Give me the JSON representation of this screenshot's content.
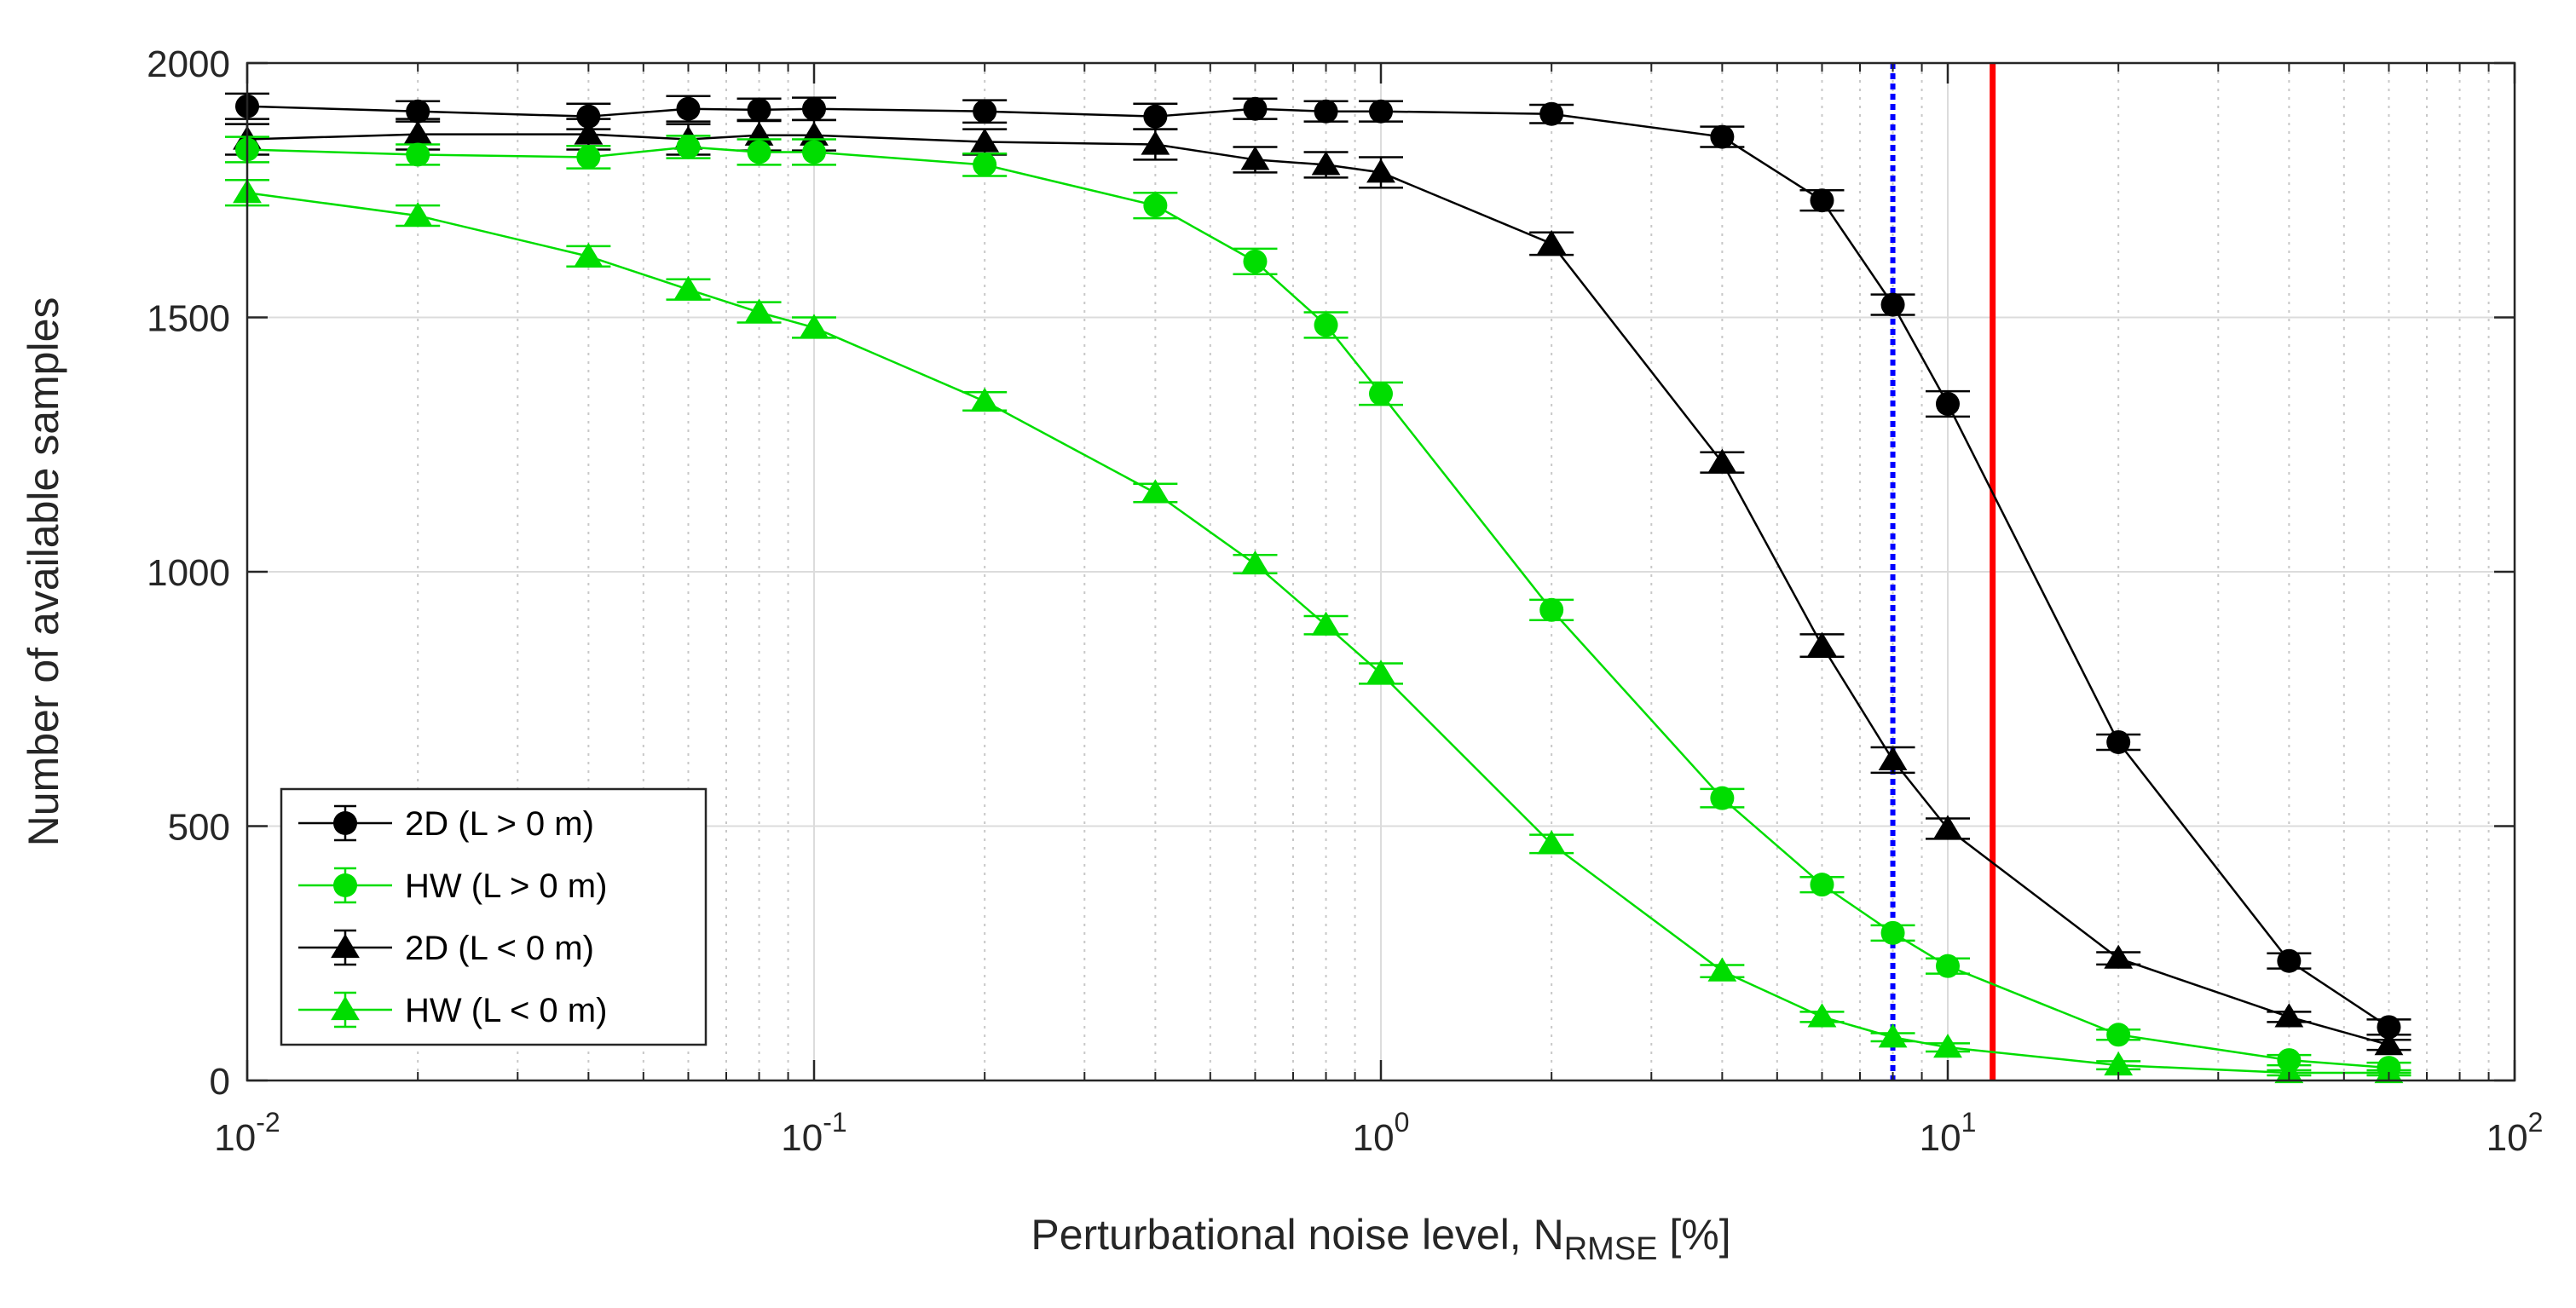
{
  "chart_data": {
    "type": "line",
    "x_scale": "log",
    "xlim": [
      0.01,
      100
    ],
    "ylim": [
      0,
      2000
    ],
    "xlabel": {
      "main": "Perturbational noise level, N",
      "sub": "RMSE",
      "suffix": " [%]"
    },
    "ylabel": "Number of available samples",
    "y_ticks": [
      0,
      500,
      1000,
      1500,
      2000
    ],
    "x_ticks": [
      {
        "value": 0.01,
        "base": "10",
        "exp": "-2"
      },
      {
        "value": 0.1,
        "base": "10",
        "exp": "-1"
      },
      {
        "value": 1,
        "base": "10",
        "exp": "0"
      },
      {
        "value": 10,
        "base": "10",
        "exp": "1"
      },
      {
        "value": 100,
        "base": "10",
        "exp": "2"
      }
    ],
    "grid": true,
    "legend_position": "bottom-left",
    "x": [
      0.01,
      0.02,
      0.04,
      0.06,
      0.08,
      0.1,
      0.2,
      0.4,
      0.6,
      0.8,
      1,
      2,
      4,
      6,
      8,
      10,
      20,
      40,
      60
    ],
    "series": [
      {
        "name": "2D (L > 0 m)",
        "color": "#000000",
        "marker": "circle",
        "values": [
          1915,
          1905,
          1895,
          1910,
          1908,
          1910,
          1905,
          1895,
          1910,
          1905,
          1905,
          1900,
          1855,
          1730,
          1525,
          1330,
          665,
          235,
          105
        ],
        "errors": [
          25,
          20,
          25,
          25,
          22,
          22,
          22,
          25,
          20,
          20,
          20,
          18,
          20,
          20,
          20,
          25,
          15,
          15,
          15
        ]
      },
      {
        "name": "HW (L > 0 m)",
        "color": "#00dd00",
        "marker": "circle",
        "values": [
          1830,
          1820,
          1815,
          1835,
          1825,
          1825,
          1800,
          1720,
          1610,
          1485,
          1350,
          925,
          555,
          385,
          290,
          225,
          90,
          40,
          25
        ],
        "errors": [
          25,
          20,
          22,
          22,
          25,
          25,
          22,
          25,
          25,
          25,
          22,
          20,
          18,
          15,
          15,
          15,
          10,
          10,
          10
        ]
      },
      {
        "name": "2D (L < 0 m)",
        "color": "#000000",
        "marker": "triangle",
        "values": [
          1850,
          1860,
          1860,
          1850,
          1858,
          1858,
          1845,
          1840,
          1810,
          1800,
          1785,
          1645,
          1215,
          855,
          630,
          495,
          240,
          125,
          70
        ],
        "errors": [
          30,
          30,
          30,
          30,
          30,
          30,
          25,
          30,
          25,
          25,
          30,
          22,
          20,
          22,
          25,
          20,
          12,
          10,
          10
        ]
      },
      {
        "name": "HW (L < 0 m)",
        "color": "#00dd00",
        "marker": "triangle",
        "values": [
          1745,
          1700,
          1620,
          1555,
          1510,
          1480,
          1335,
          1155,
          1015,
          895,
          800,
          465,
          215,
          125,
          85,
          65,
          30,
          15,
          15
        ],
        "errors": [
          25,
          20,
          20,
          20,
          20,
          20,
          18,
          18,
          18,
          18,
          20,
          18,
          12,
          10,
          8,
          8,
          8,
          5,
          5
        ]
      }
    ],
    "vertical_lines": [
      {
        "value": 8,
        "color": "#0000ff",
        "style": "dotted"
      },
      {
        "value": 12,
        "color": "#ff0000",
        "style": "solid"
      }
    ]
  }
}
